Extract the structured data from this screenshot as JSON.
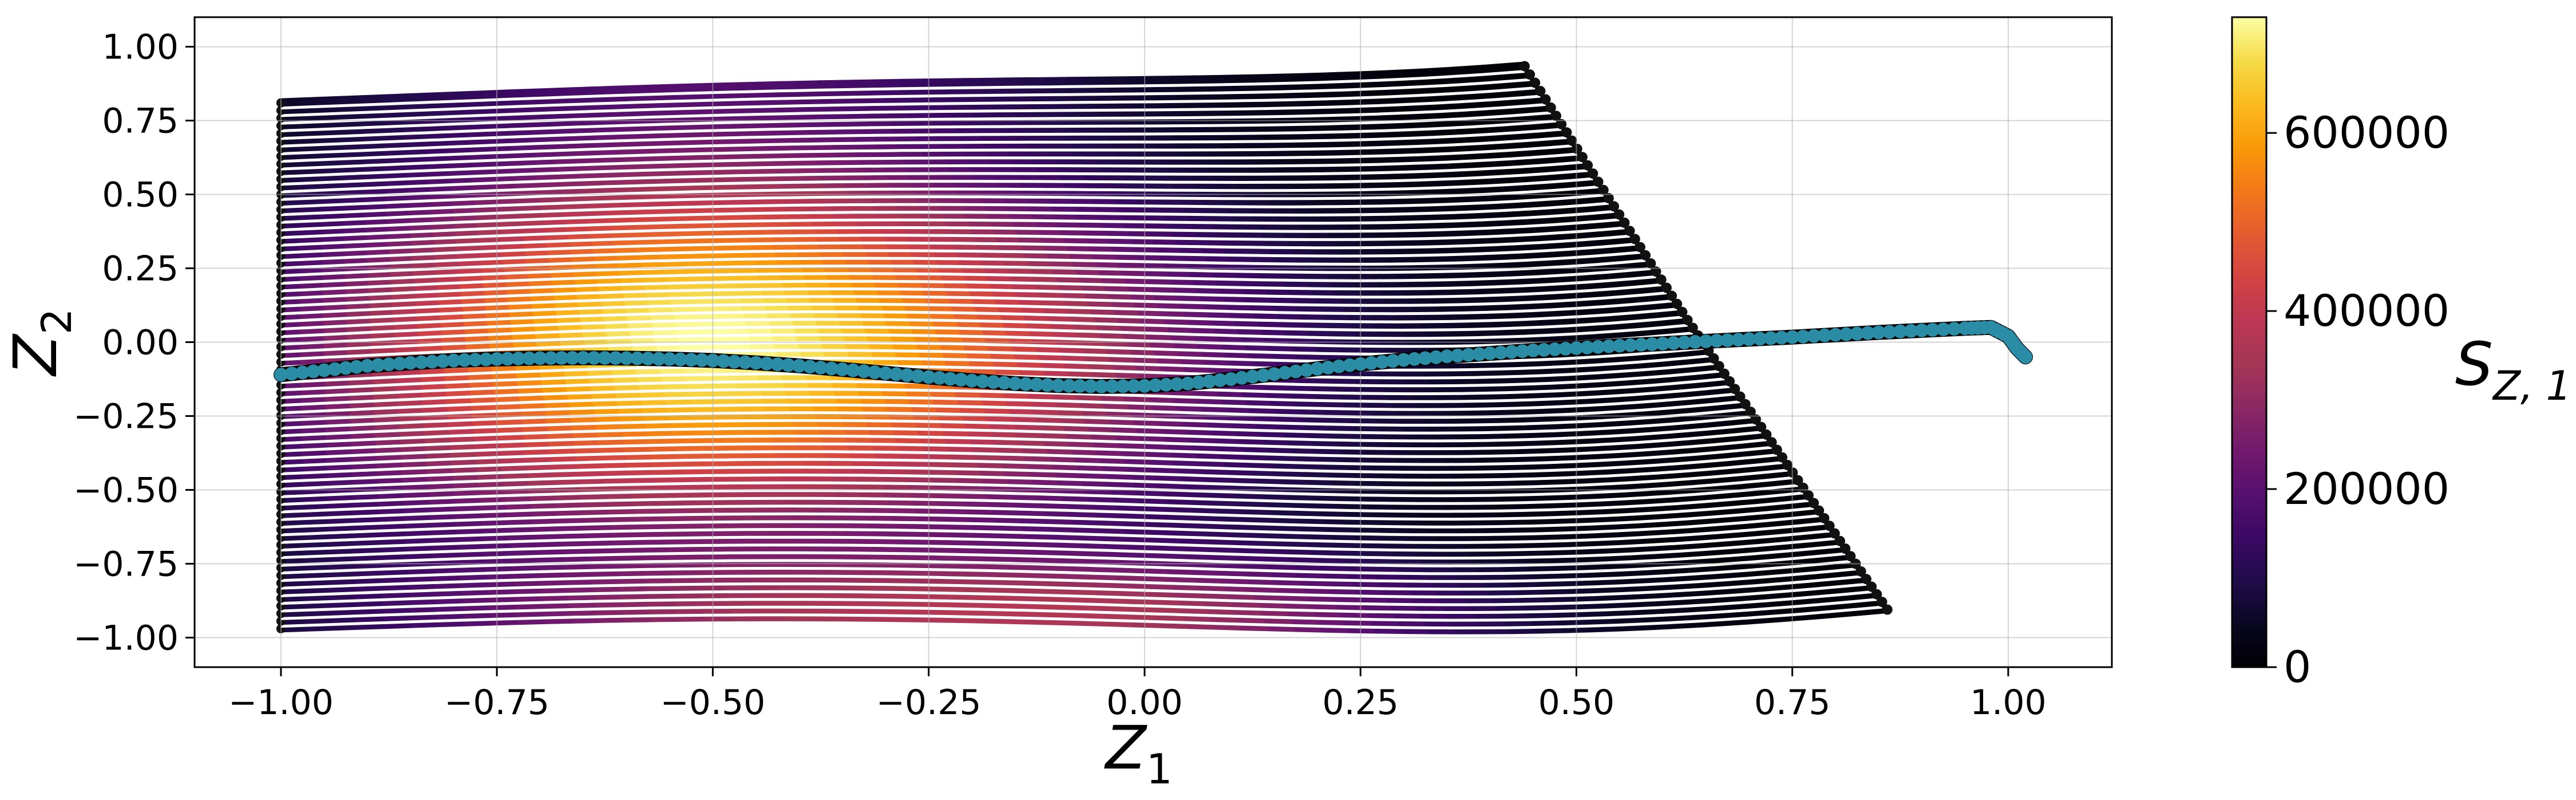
{
  "chart_data": {
    "type": "scatter",
    "title": "",
    "xlabel": "Z",
    "xlabel_sub": "1",
    "ylabel": "Z",
    "ylabel_sub": "2",
    "xlim": [
      -1.1,
      1.12
    ],
    "ylim": [
      -1.1,
      1.1
    ],
    "xticks": [
      -1.0,
      -0.75,
      -0.5,
      -0.25,
      0.0,
      0.25,
      0.5,
      0.75,
      1.0
    ],
    "xtick_labels": [
      "−1.00",
      "−0.75",
      "−0.50",
      "−0.25",
      "0.00",
      "0.25",
      "0.50",
      "0.75",
      "1.00"
    ],
    "yticks": [
      1.0,
      0.75,
      0.5,
      0.25,
      0.0,
      -0.25,
      -0.5,
      -0.75,
      -1.0
    ],
    "ytick_labels": [
      "1.00",
      "0.75",
      "0.50",
      "0.25",
      "0.00",
      "−0.25",
      "−0.50",
      "−0.75",
      "−1.00"
    ],
    "grid": true,
    "colorbar": {
      "label": "S",
      "label_sub": "Z, 1",
      "colormap": "inferno",
      "range": [
        0,
        730000
      ],
      "ticks": [
        0,
        200000,
        400000,
        600000
      ],
      "tick_labels": [
        "0",
        "200000",
        "400000",
        "600000"
      ]
    },
    "trajectories": {
      "count": 70,
      "z1_start": -1.0,
      "z2_start_range": [
        -0.97,
        0.81
      ],
      "z1_end_bottom": 0.86,
      "z1_end_top": 0.44,
      "z2_end_bottom": -0.87,
      "z2_end_top": 1.0,
      "separator_color": "#ffffff",
      "endpoint_color": "#111111"
    },
    "highlight_series": {
      "color": "#2a8ca5",
      "points": [
        [
          -1.0,
          -0.11
        ],
        [
          -0.95,
          -0.095
        ],
        [
          -0.9,
          -0.08
        ],
        [
          -0.85,
          -0.07
        ],
        [
          -0.8,
          -0.062
        ],
        [
          -0.75,
          -0.057
        ],
        [
          -0.7,
          -0.054
        ],
        [
          -0.65,
          -0.053
        ],
        [
          -0.6,
          -0.054
        ],
        [
          -0.55,
          -0.057
        ],
        [
          -0.5,
          -0.062
        ],
        [
          -0.45,
          -0.07
        ],
        [
          -0.4,
          -0.08
        ],
        [
          -0.35,
          -0.092
        ],
        [
          -0.3,
          -0.105
        ],
        [
          -0.25,
          -0.118
        ],
        [
          -0.2,
          -0.13
        ],
        [
          -0.15,
          -0.14
        ],
        [
          -0.1,
          -0.147
        ],
        [
          -0.05,
          -0.15
        ],
        [
          0.0,
          -0.148
        ],
        [
          0.05,
          -0.14
        ],
        [
          0.1,
          -0.125
        ],
        [
          0.15,
          -0.108
        ],
        [
          0.2,
          -0.09
        ],
        [
          0.25,
          -0.074
        ],
        [
          0.3,
          -0.06
        ],
        [
          0.35,
          -0.048
        ],
        [
          0.4,
          -0.038
        ],
        [
          0.45,
          -0.028
        ],
        [
          0.5,
          -0.02
        ],
        [
          0.55,
          -0.012
        ],
        [
          0.6,
          -0.005
        ],
        [
          0.65,
          0.003
        ],
        [
          0.7,
          0.01
        ],
        [
          0.75,
          0.017
        ],
        [
          0.8,
          0.025
        ],
        [
          0.85,
          0.033
        ],
        [
          0.9,
          0.04
        ],
        [
          0.95,
          0.047
        ],
        [
          0.98,
          0.05
        ],
        [
          1.0,
          0.02
        ],
        [
          1.01,
          -0.02
        ],
        [
          1.02,
          -0.05
        ]
      ]
    }
  }
}
